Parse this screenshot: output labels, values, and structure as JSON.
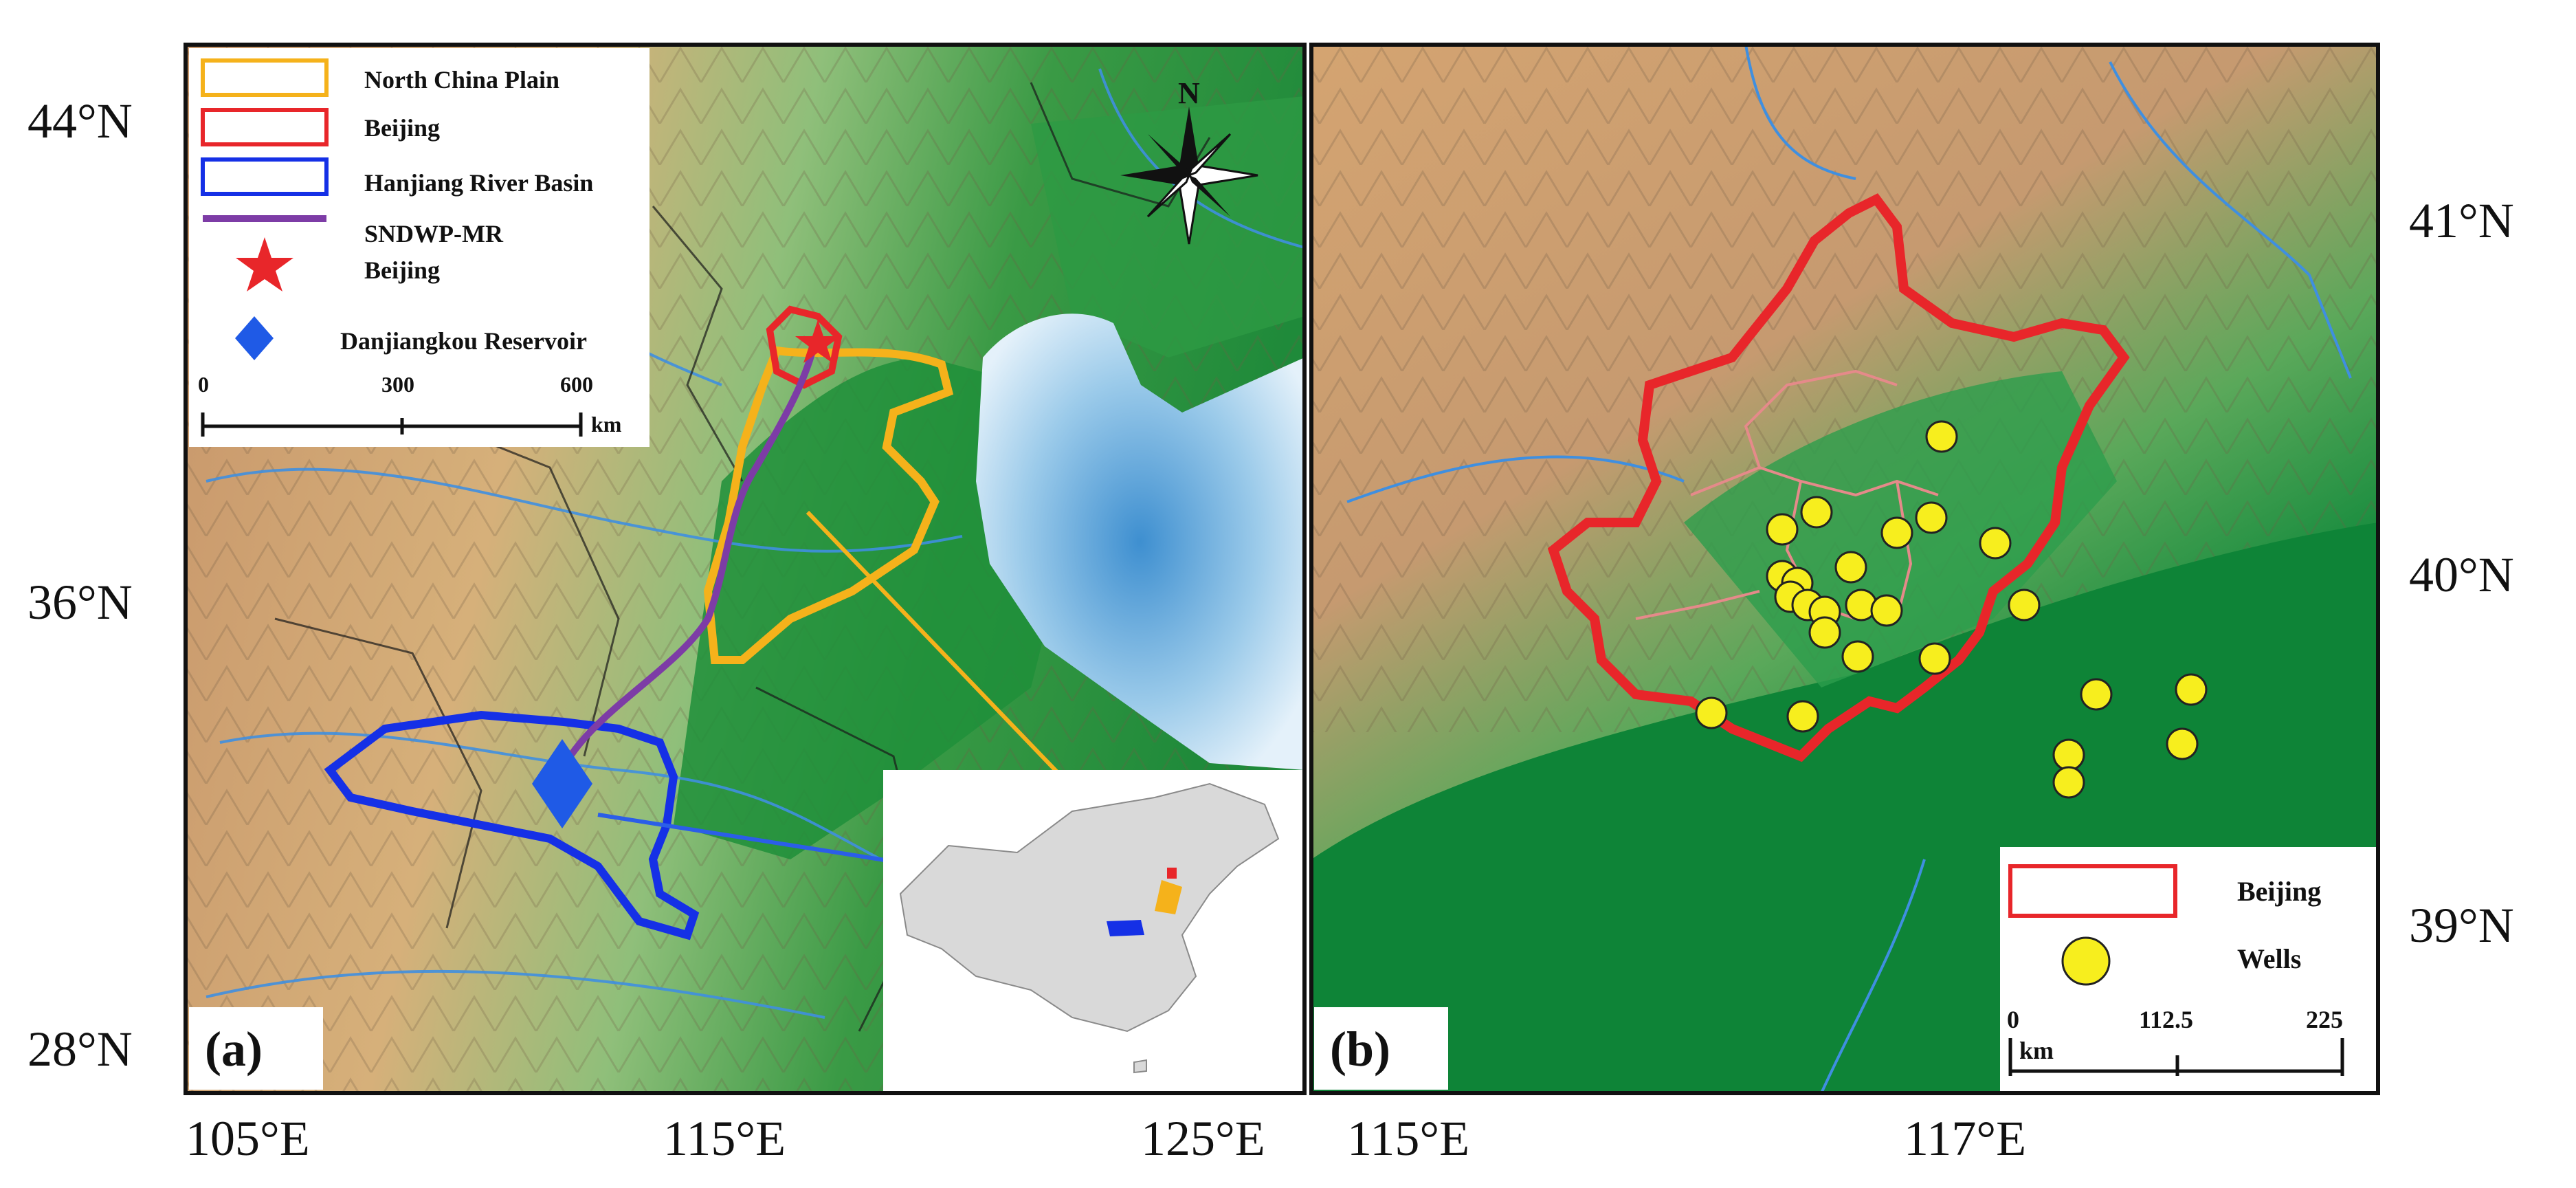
{
  "panel_a": {
    "label": "(a)",
    "lat_ticks": [
      "44°N",
      "36°N",
      "28°N"
    ],
    "lon_ticks": [
      "105°E",
      "115°E",
      "125°E"
    ],
    "north_label": "N",
    "legend": {
      "items": [
        {
          "label": "North China Plain",
          "color": "#f5b21b"
        },
        {
          "label": "Beijing",
          "color": "#e8262a"
        },
        {
          "label": "Hanjiang River Basin",
          "color": "#1530e6"
        },
        {
          "label": "SNDWP-MR",
          "color": "#7d3ca6"
        },
        {
          "label": "Beijing",
          "color": "#e8262a"
        },
        {
          "label": "Danjiangkou Reservoir",
          "color": "#1f5ae6"
        }
      ],
      "scale": {
        "ticks": [
          "0",
          "300",
          "600"
        ],
        "unit": "km"
      }
    }
  },
  "panel_b": {
    "label": "(b)",
    "lat_ticks": [
      "41°N",
      "40°N",
      "39°N"
    ],
    "lon_ticks": [
      "115°E",
      "117°E"
    ],
    "legend": {
      "items": [
        {
          "label": "Beijing",
          "color": "#e8262a"
        },
        {
          "label": "Wells",
          "color": "#f7ee1e"
        }
      ],
      "scale": {
        "ticks": [
          "0",
          "112.5",
          "225"
        ],
        "unit": "km"
      }
    }
  }
}
